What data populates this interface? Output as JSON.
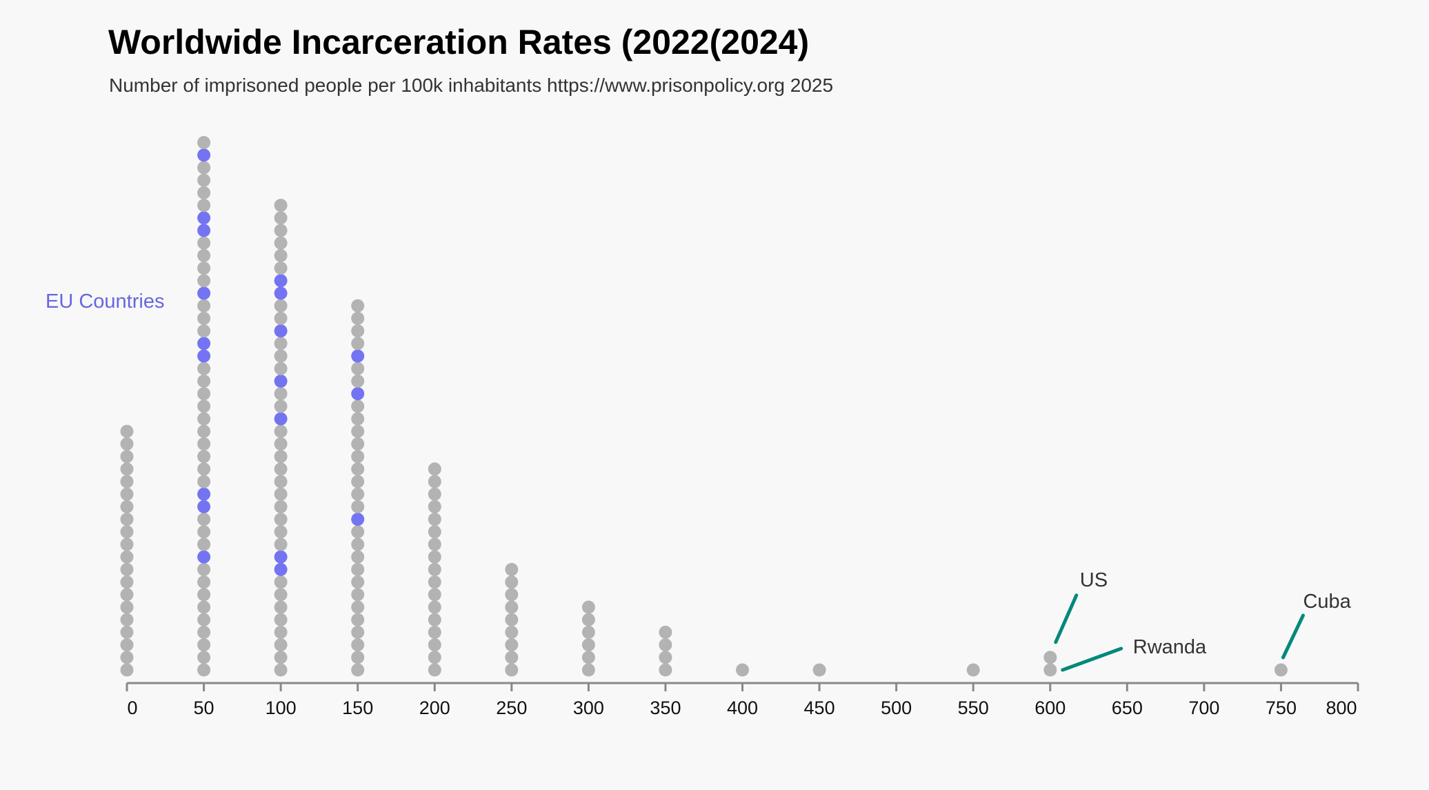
{
  "title": "Worldwide Incarceration Rates (2022(2024)",
  "subtitle": "Number of imprisoned people per 100k inhabitants https://www.prisonpolicy.org 2025",
  "colors": {
    "other": "#b3b3b3",
    "eu": "#7474f2",
    "annotation": "#00897b",
    "axis": "#888888",
    "eu_label": "#6666e0"
  },
  "chart_data": {
    "type": "scatter",
    "subtype": "dot-histogram",
    "xlim": [
      0,
      800
    ],
    "xticks": [
      0,
      50,
      100,
      150,
      200,
      250,
      300,
      350,
      400,
      450,
      500,
      550,
      600,
      650,
      700,
      750,
      800
    ],
    "series_label": "EU Countries",
    "bins": [
      {
        "x": 0,
        "count": 20,
        "eu_positions": []
      },
      {
        "x": 50,
        "count": 43,
        "eu_positions": [
          10,
          14,
          15,
          26,
          27,
          31,
          36,
          37,
          42
        ]
      },
      {
        "x": 100,
        "count": 38,
        "eu_positions": [
          9,
          10,
          21,
          24,
          28,
          31,
          32
        ]
      },
      {
        "x": 150,
        "count": 30,
        "eu_positions": [
          13,
          23,
          26
        ]
      },
      {
        "x": 200,
        "count": 17,
        "eu_positions": []
      },
      {
        "x": 250,
        "count": 9,
        "eu_positions": []
      },
      {
        "x": 300,
        "count": 6,
        "eu_positions": []
      },
      {
        "x": 350,
        "count": 4,
        "eu_positions": []
      },
      {
        "x": 400,
        "count": 1,
        "eu_positions": []
      },
      {
        "x": 450,
        "count": 1,
        "eu_positions": []
      },
      {
        "x": 550,
        "count": 1,
        "eu_positions": []
      },
      {
        "x": 600,
        "count": 2,
        "eu_positions": []
      },
      {
        "x": 750,
        "count": 1,
        "eu_positions": []
      }
    ],
    "annotations": [
      {
        "label": "US",
        "x": 600,
        "index": 2
      },
      {
        "label": "Rwanda",
        "x": 600,
        "index": 1
      },
      {
        "label": "Cuba",
        "x": 750,
        "index": 1
      }
    ]
  }
}
